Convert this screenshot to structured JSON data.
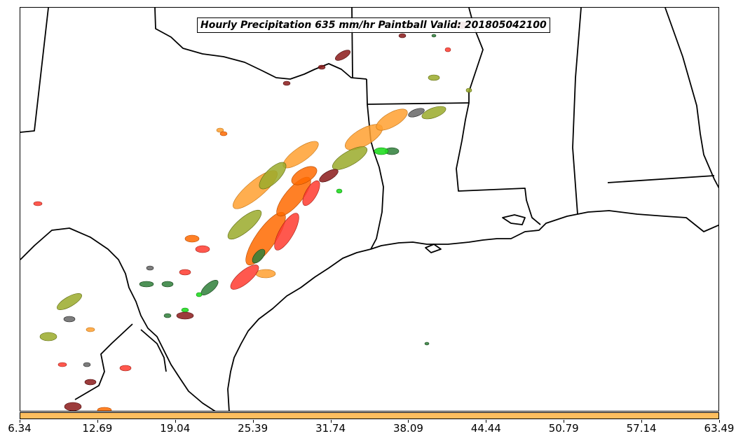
{
  "title": "Hourly Precipitation 635 mm/hr Paintball Valid: 201805042100",
  "colorbar": {
    "color": "#FDBE5F",
    "ticks": [
      "6.34",
      "12.69",
      "19.04",
      "25.39",
      "31.74",
      "38.09",
      "44.44",
      "50.79",
      "57.14",
      "63.49"
    ]
  },
  "colors": {
    "boundary": "#000000",
    "paintball_members": [
      "#FF3B2F",
      "#FF6A00",
      "#FFA030",
      "#9AAA2A",
      "#2F7F3A",
      "#22DD22",
      "#8B1A1A",
      "#666666"
    ]
  }
}
